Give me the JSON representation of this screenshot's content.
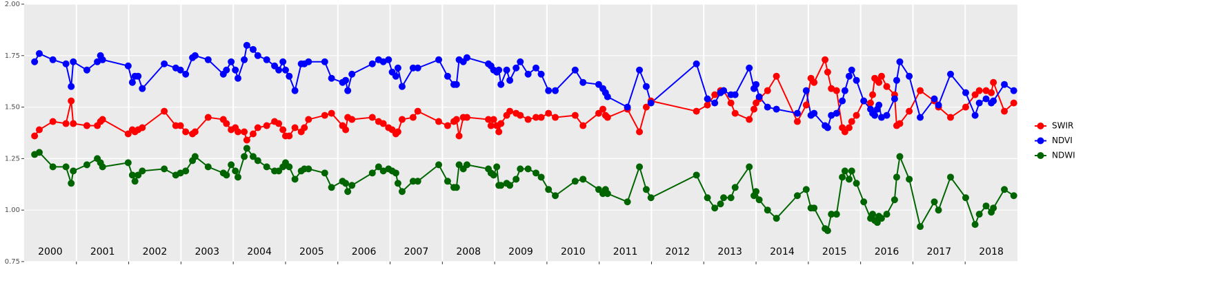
{
  "chart_data": {
    "type": "line",
    "xlim": [
      2000,
      2019
    ],
    "xbreaks": [
      2001,
      2002,
      2003,
      2004,
      2005,
      2006,
      2007,
      2008,
      2009,
      2010,
      2011,
      2012,
      2013,
      2014,
      2015,
      2016,
      2017,
      2018
    ],
    "xticks": [
      {
        "value": 2000.5,
        "label": "2000"
      },
      {
        "value": 2001.5,
        "label": "2001"
      },
      {
        "value": 2002.5,
        "label": "2002"
      },
      {
        "value": 2003.5,
        "label": "2003"
      },
      {
        "value": 2004.5,
        "label": "2004"
      },
      {
        "value": 2005.5,
        "label": "2005"
      },
      {
        "value": 2006.5,
        "label": "2006"
      },
      {
        "value": 2007.5,
        "label": "2007"
      },
      {
        "value": 2008.5,
        "label": "2008"
      },
      {
        "value": 2009.5,
        "label": "2009"
      },
      {
        "value": 2010.5,
        "label": "2010"
      },
      {
        "value": 2011.5,
        "label": "2011"
      },
      {
        "value": 2012.5,
        "label": "2012"
      },
      {
        "value": 2013.5,
        "label": "2013"
      },
      {
        "value": 2014.5,
        "label": "2014"
      },
      {
        "value": 2015.5,
        "label": "2015"
      },
      {
        "value": 2016.5,
        "label": "2016"
      },
      {
        "value": 2017.5,
        "label": "2017"
      },
      {
        "value": 2018.5,
        "label": "2018"
      }
    ],
    "ylim": [
      0.75,
      2
    ],
    "yticks": [
      0.75,
      {
        "value": 1,
        "label": "1.00"
      },
      1.25,
      {
        "value": 1.5,
        "label": "1.50"
      },
      1.75,
      {
        "value": 2,
        "label": "2.00"
      }
    ],
    "grid": true,
    "legend": "right",
    "x": [
      2000.2,
      2000.29,
      2000.55,
      2000.8,
      2000.9,
      2000.94,
      2001.2,
      2001.4,
      2001.46,
      2001.5,
      2001.99,
      2002.07,
      2002.12,
      2002.18,
      2002.26,
      2002.68,
      2002.9,
      2002.99,
      2003.09,
      2003.22,
      2003.27,
      2003.52,
      2003.81,
      2003.87,
      2003.96,
      2004.04,
      2004.09,
      2004.21,
      2004.26,
      2004.38,
      2004.47,
      2004.64,
      2004.79,
      2004.87,
      2004.95,
      2005.0,
      2005.07,
      2005.18,
      2005.3,
      2005.36,
      2005.44,
      2005.75,
      2005.88,
      2006.09,
      2006.15,
      2006.19,
      2006.27,
      2006.66,
      2006.78,
      2006.87,
      2006.97,
      2007.04,
      2007.11,
      2007.15,
      2007.23,
      2007.44,
      2007.53,
      2007.93,
      2008.1,
      2008.22,
      2008.27,
      2008.32,
      2008.4,
      2008.47,
      2008.88,
      2008.93,
      2008.98,
      2009.04,
      2009.08,
      2009.12,
      2009.23,
      2009.29,
      2009.41,
      2009.49,
      2009.64,
      2009.79,
      2009.89,
      2010.03,
      2010.16,
      2010.54,
      2010.69,
      2010.99,
      2011.07,
      2011.12,
      2011.16,
      2011.54,
      2011.77,
      2011.9,
      2011.99,
      2012.86,
      2013.07,
      2013.21,
      2013.32,
      2013.38,
      2013.52,
      2013.6,
      2013.87,
      2013.96,
      2014.0,
      2014.06,
      2014.22,
      2014.39,
      2014.79,
      2014.96,
      2015.05,
      2015.11,
      2015.32,
      2015.37,
      2015.44,
      2015.54,
      2015.65,
      2015.7,
      2015.78,
      2015.83,
      2015.92,
      2016.06,
      2016.19,
      2016.23,
      2016.27,
      2016.32,
      2016.35,
      2016.4,
      2016.5,
      2016.65,
      2016.69,
      2016.75,
      2016.93,
      2017.14,
      2017.41,
      2017.49,
      2017.72,
      2018.01,
      2018.19,
      2018.27,
      2018.4,
      2018.5,
      2018.54,
      2018.75,
      2018.93
    ],
    "series": [
      {
        "name": "SWIR",
        "color": "#ff0000",
        "values": [
          1.36,
          1.39,
          1.43,
          1.42,
          1.53,
          1.42,
          1.41,
          1.41,
          1.43,
          1.44,
          1.37,
          1.39,
          1.38,
          1.39,
          1.4,
          1.48,
          1.41,
          1.41,
          1.38,
          1.37,
          1.38,
          1.45,
          1.44,
          1.42,
          1.39,
          1.4,
          1.38,
          1.38,
          1.34,
          1.37,
          1.4,
          1.41,
          1.43,
          1.42,
          1.39,
          1.36,
          1.36,
          1.4,
          1.38,
          1.4,
          1.44,
          1.46,
          1.47,
          1.41,
          1.39,
          1.45,
          1.44,
          1.45,
          1.43,
          1.42,
          1.4,
          1.39,
          1.37,
          1.38,
          1.44,
          1.45,
          1.48,
          1.43,
          1.41,
          1.43,
          1.44,
          1.36,
          1.45,
          1.45,
          1.44,
          1.41,
          1.44,
          1.41,
          1.38,
          1.42,
          1.46,
          1.48,
          1.47,
          1.46,
          1.44,
          1.45,
          1.45,
          1.47,
          1.45,
          1.46,
          1.41,
          1.47,
          1.49,
          1.46,
          1.45,
          1.49,
          1.38,
          1.5,
          1.53,
          1.48,
          1.51,
          1.56,
          1.58,
          1.58,
          1.52,
          1.47,
          1.44,
          1.49,
          1.52,
          1.54,
          1.58,
          1.65,
          1.43,
          1.51,
          1.64,
          1.62,
          1.73,
          1.67,
          1.59,
          1.58,
          1.4,
          1.38,
          1.4,
          1.43,
          1.46,
          1.53,
          1.52,
          1.56,
          1.64,
          1.63,
          1.62,
          1.65,
          1.6,
          1.56,
          1.41,
          1.42,
          1.48,
          1.58,
          1.53,
          1.5,
          1.45,
          1.5,
          1.56,
          1.58,
          1.58,
          1.57,
          1.62,
          1.48,
          1.52
        ]
      },
      {
        "name": "NDVI",
        "color": "#0000ff",
        "values": [
          1.72,
          1.76,
          1.73,
          1.71,
          1.6,
          1.72,
          1.68,
          1.72,
          1.75,
          1.73,
          1.7,
          1.62,
          1.65,
          1.65,
          1.59,
          1.71,
          1.69,
          1.68,
          1.66,
          1.74,
          1.75,
          1.73,
          1.66,
          1.68,
          1.72,
          1.68,
          1.64,
          1.73,
          1.8,
          1.78,
          1.75,
          1.73,
          1.7,
          1.68,
          1.72,
          1.68,
          1.65,
          1.58,
          1.71,
          1.71,
          1.72,
          1.72,
          1.64,
          1.62,
          1.63,
          1.58,
          1.66,
          1.71,
          1.73,
          1.72,
          1.73,
          1.67,
          1.65,
          1.69,
          1.6,
          1.69,
          1.69,
          1.73,
          1.65,
          1.61,
          1.61,
          1.73,
          1.72,
          1.74,
          1.71,
          1.7,
          1.68,
          1.67,
          1.68,
          1.61,
          1.68,
          1.63,
          1.69,
          1.72,
          1.66,
          1.69,
          1.66,
          1.58,
          1.58,
          1.68,
          1.62,
          1.61,
          1.59,
          1.57,
          1.55,
          1.5,
          1.68,
          1.6,
          1.52,
          1.71,
          1.54,
          1.52,
          1.57,
          1.58,
          1.56,
          1.56,
          1.69,
          1.59,
          1.61,
          1.55,
          1.5,
          1.49,
          1.47,
          1.58,
          1.46,
          1.47,
          1.41,
          1.4,
          1.46,
          1.47,
          1.53,
          1.58,
          1.65,
          1.68,
          1.63,
          1.53,
          1.49,
          1.47,
          1.46,
          1.49,
          1.51,
          1.45,
          1.46,
          1.54,
          1.63,
          1.72,
          1.65,
          1.45,
          1.54,
          1.51,
          1.66,
          1.57,
          1.46,
          1.52,
          1.54,
          1.52,
          1.53,
          1.61,
          1.58
        ]
      },
      {
        "name": "NDWI",
        "color": "#006400",
        "values": [
          1.27,
          1.28,
          1.21,
          1.21,
          1.13,
          1.19,
          1.22,
          1.25,
          1.23,
          1.21,
          1.23,
          1.17,
          1.14,
          1.17,
          1.19,
          1.2,
          1.17,
          1.18,
          1.19,
          1.24,
          1.26,
          1.21,
          1.18,
          1.17,
          1.22,
          1.19,
          1.16,
          1.26,
          1.3,
          1.26,
          1.24,
          1.21,
          1.19,
          1.19,
          1.21,
          1.23,
          1.21,
          1.15,
          1.19,
          1.2,
          1.2,
          1.18,
          1.11,
          1.14,
          1.13,
          1.09,
          1.12,
          1.18,
          1.21,
          1.19,
          1.2,
          1.19,
          1.18,
          1.13,
          1.09,
          1.14,
          1.14,
          1.22,
          1.14,
          1.11,
          1.11,
          1.22,
          1.2,
          1.22,
          1.2,
          1.18,
          1.17,
          1.21,
          1.12,
          1.12,
          1.13,
          1.12,
          1.15,
          1.2,
          1.2,
          1.18,
          1.16,
          1.1,
          1.07,
          1.14,
          1.15,
          1.1,
          1.08,
          1.1,
          1.08,
          1.04,
          1.21,
          1.1,
          1.06,
          1.17,
          1.06,
          1.01,
          1.03,
          1.06,
          1.06,
          1.11,
          1.21,
          1.07,
          1.09,
          1.05,
          1.0,
          0.96,
          1.07,
          1.1,
          1.01,
          1.01,
          0.91,
          0.9,
          0.98,
          0.98,
          1.16,
          1.19,
          1.15,
          1.19,
          1.13,
          1.04,
          0.96,
          0.98,
          0.95,
          0.94,
          0.97,
          0.96,
          0.98,
          1.05,
          1.16,
          1.26,
          1.15,
          0.92,
          1.04,
          1.0,
          1.16,
          1.06,
          0.93,
          0.98,
          1.02,
          0.99,
          1.01,
          1.1,
          1.07
        ]
      }
    ]
  }
}
